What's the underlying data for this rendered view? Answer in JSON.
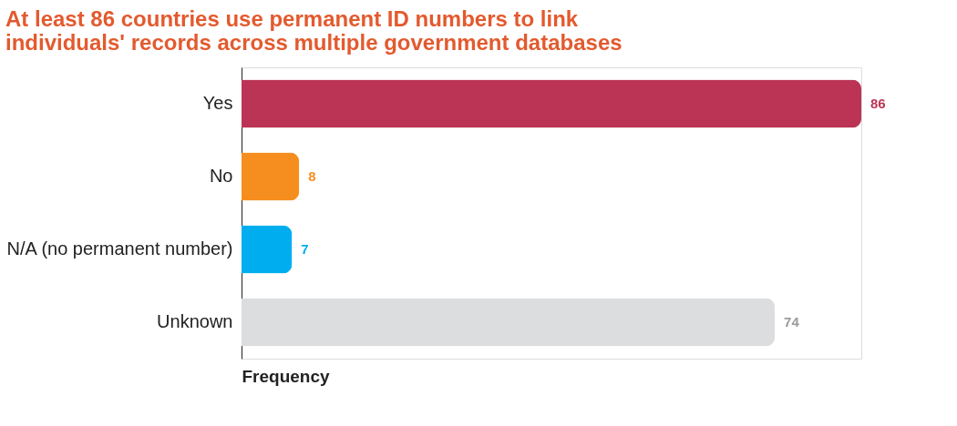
{
  "chart_data": {
    "type": "bar",
    "orientation": "horizontal",
    "title": "At least 86 countries use permanent ID numbers to link individuals' records across multiple government databases",
    "categories": [
      "Yes",
      "No",
      "N/A (no permanent number)",
      "Unknown"
    ],
    "values": [
      86,
      8,
      7,
      74
    ],
    "colors": [
      "#bb3455",
      "#f68e1f",
      "#00aeef",
      "#dcdddf"
    ],
    "xlabel": "Frequency",
    "data_labels": true,
    "tick_labels": "y",
    "grid": false
  }
}
